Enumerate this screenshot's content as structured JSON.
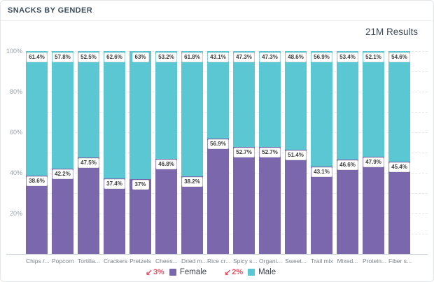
{
  "header": {
    "title": "SNACKS BY GENDER",
    "results": "21M Results"
  },
  "colors": {
    "female": "#7b68ac",
    "male": "#5bc7d2",
    "change_red": "#ef4e63"
  },
  "chart_data": {
    "type": "bar",
    "variant": "stacked-100",
    "title": "SNACKS BY GENDER",
    "categories": [
      "Chips /...",
      "Popcorn",
      "Tortilla...",
      "Crackers",
      "Pretzels",
      "Chees...",
      "Dried m...",
      "Rice cr...",
      "Spicy s...",
      "Organi...",
      "Sweet...",
      "Trail mix",
      "Mixed...",
      "Protein...",
      "Fiber s..."
    ],
    "series": [
      {
        "name": "Female",
        "color": "#7b68ac",
        "values": [
          38.6,
          42.2,
          47.5,
          37.4,
          37,
          46.8,
          38.2,
          56.9,
          52.7,
          52.7,
          51.4,
          43.1,
          46.6,
          47.9,
          45.4
        ]
      },
      {
        "name": "Male",
        "color": "#5bc7d2",
        "values": [
          61.4,
          57.8,
          52.5,
          62.6,
          63,
          53.2,
          61.8,
          43.1,
          47.3,
          47.3,
          48.6,
          56.9,
          53.4,
          52.1,
          54.6
        ]
      }
    ],
    "y_ticks": [
      "100%",
      "80%",
      "60%",
      "40%",
      "20%"
    ],
    "ylim": [
      0,
      100
    ],
    "grid": "horizontal dashed every 10%",
    "legend_position": "bottom-center",
    "legend": [
      {
        "change": "3%",
        "direction": "down",
        "label": "Female",
        "color": "#7b68ac"
      },
      {
        "change": "2%",
        "direction": "down",
        "label": "Male",
        "color": "#5bc7d2"
      }
    ]
  }
}
